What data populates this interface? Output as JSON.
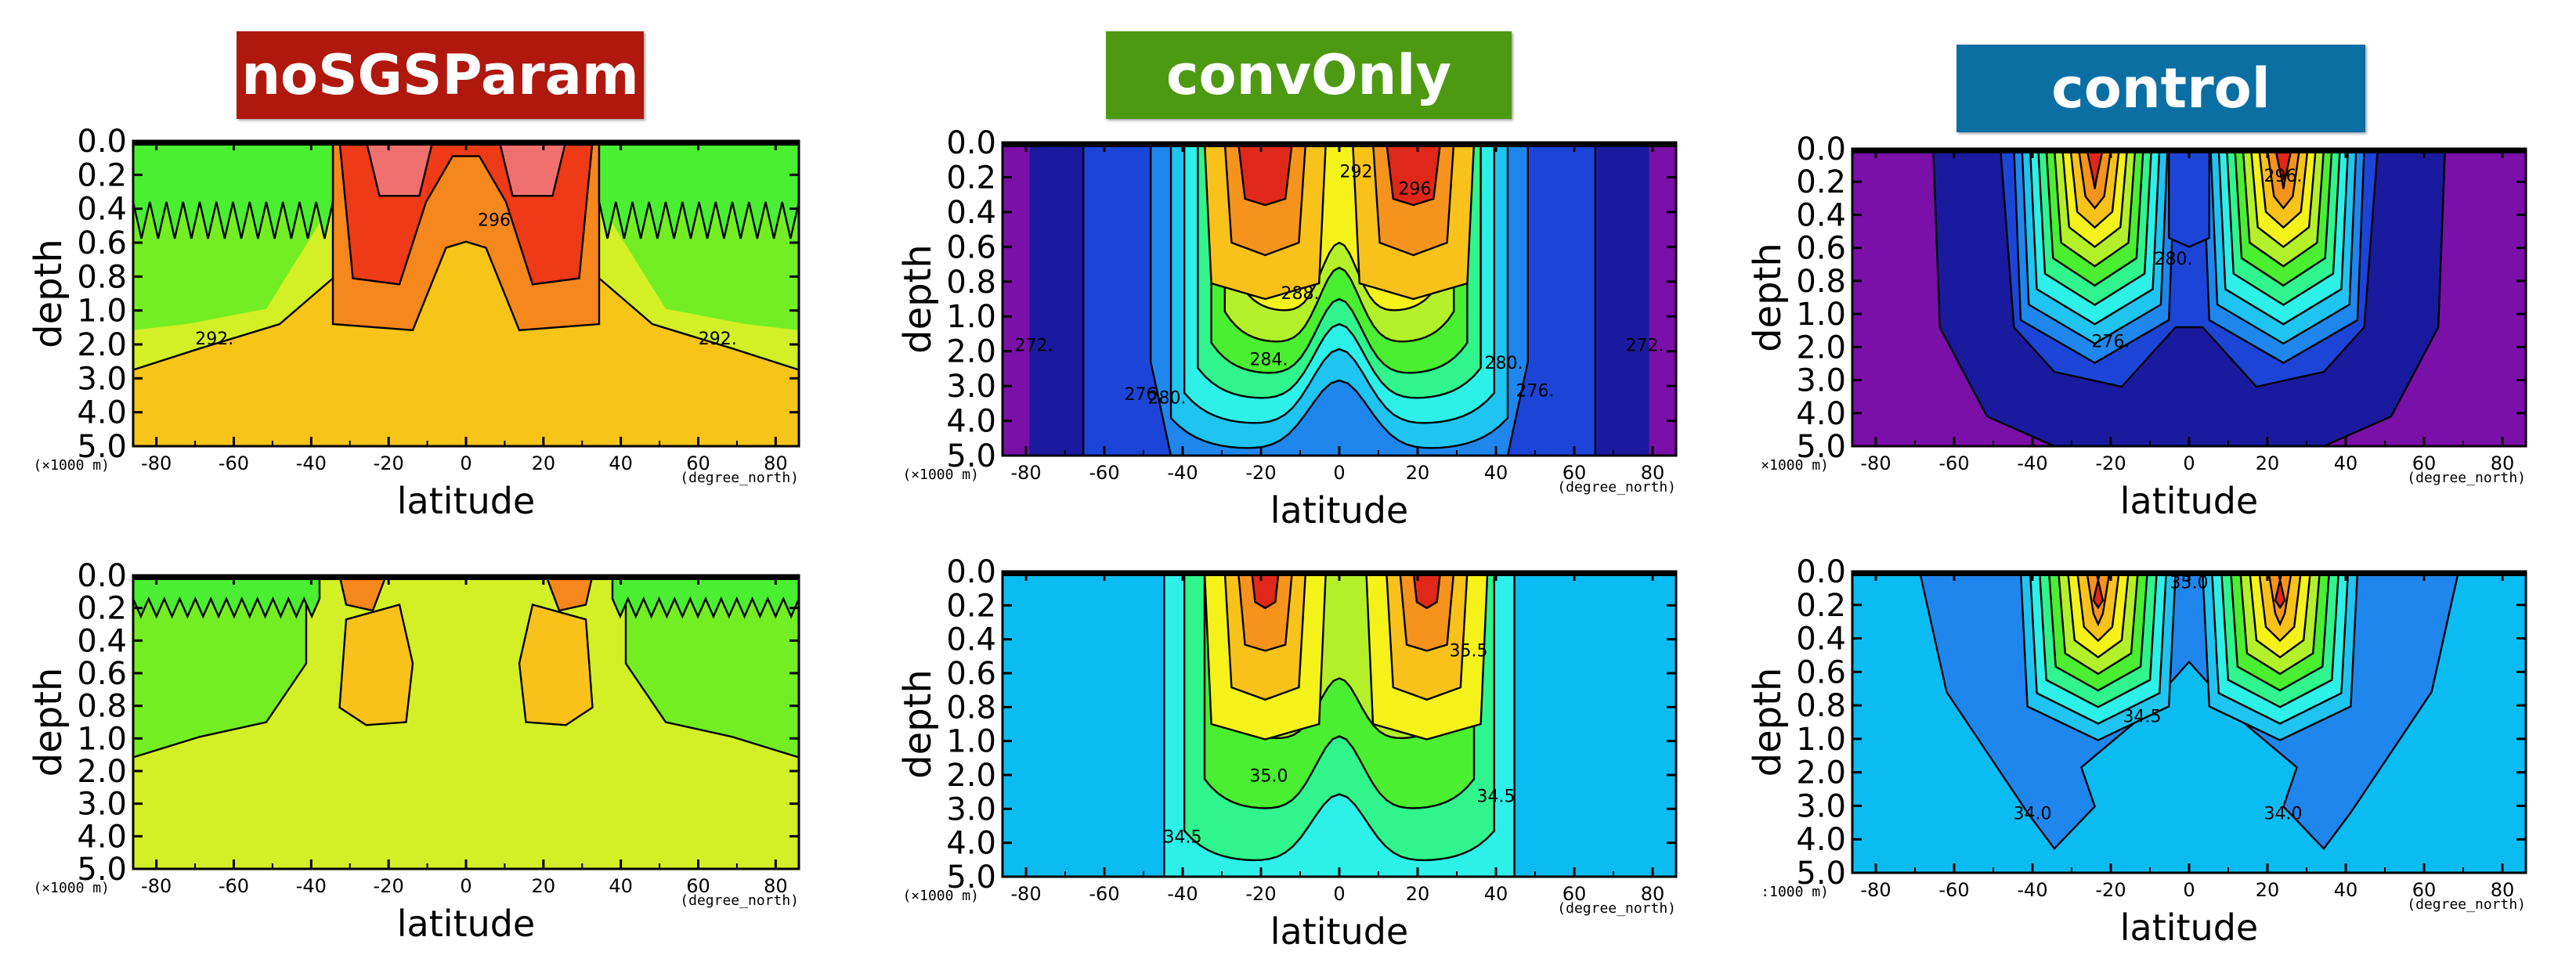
{
  "titles": [
    {
      "text": "noSGSParam",
      "color": "#b0180e"
    },
    {
      "text": "convOnly",
      "color": "#4d9a12"
    },
    {
      "text": "control",
      "color": "#0b6fa3"
    }
  ],
  "chart_data": [
    {
      "type": "heatmap",
      "experiment": "noSGSParam",
      "row": 0,
      "xlabel": "latitude",
      "ylabel": "depth",
      "x_unit": "(degree_north)",
      "y_unit": "(×1000 m)",
      "x_ticks": [
        -80,
        -60,
        -40,
        -20,
        0,
        20,
        40,
        60,
        80
      ],
      "y_ticks": [
        "0.0",
        "0.2",
        "0.4",
        "0.6",
        "0.8",
        "1.0",
        "2.0",
        "3.0",
        "4.0",
        "5.0"
      ],
      "xlim": [
        -86,
        86
      ],
      "ylim": [
        5.0,
        0.0
      ],
      "contour_labels": [
        {
          "text": "292.",
          "x": -65,
          "y": 2.0
        },
        {
          "text": "292.",
          "x": 65,
          "y": 2.0
        },
        {
          "text": "296.",
          "x": 8,
          "y": 0.5
        }
      ]
    },
    {
      "type": "heatmap",
      "experiment": "convOnly",
      "row": 0,
      "xlabel": "latitude",
      "ylabel": "depth",
      "x_unit": "(degree_north)",
      "y_unit": "(×1000 m)",
      "x_ticks": [
        -80,
        -60,
        -40,
        -20,
        0,
        20,
        40,
        60,
        80
      ],
      "y_ticks": [
        "0.0",
        "0.2",
        "0.4",
        "0.6",
        "0.8",
        "1.0",
        "2.0",
        "3.0",
        "4.0",
        "5.0"
      ],
      "xlim": [
        -86,
        86
      ],
      "ylim": [
        5.0,
        0.0
      ],
      "contour_labels": [
        {
          "text": "272.",
          "x": -78,
          "y": 2.0
        },
        {
          "text": "276.",
          "x": -50,
          "y": 3.4
        },
        {
          "text": "280.",
          "x": -44,
          "y": 3.5
        },
        {
          "text": "284.",
          "x": -18,
          "y": 2.4
        },
        {
          "text": "288.",
          "x": -10,
          "y": 0.9
        },
        {
          "text": "292.",
          "x": 5,
          "y": 0.2
        },
        {
          "text": "296.",
          "x": 20,
          "y": 0.3
        },
        {
          "text": "280.",
          "x": 42,
          "y": 2.5
        },
        {
          "text": "276.",
          "x": 50,
          "y": 3.3
        },
        {
          "text": "272.",
          "x": 78,
          "y": 2.0
        }
      ]
    },
    {
      "type": "heatmap",
      "experiment": "control",
      "row": 0,
      "xlabel": "latitude",
      "ylabel": "depth",
      "x_unit": "(degree_north)",
      "y_unit": "×1000 m)",
      "x_ticks": [
        -80,
        -60,
        -40,
        -20,
        0,
        20,
        40,
        60,
        80
      ],
      "y_ticks": [
        "0.0",
        "0.2",
        "0.4",
        "0.6",
        "0.8",
        "1.0",
        "2.0",
        "3.0",
        "4.0",
        "5.0"
      ],
      "xlim": [
        -86,
        86
      ],
      "ylim": [
        5.0,
        0.0
      ],
      "contour_labels": [
        {
          "text": "276.",
          "x": -20,
          "y": 2.0
        },
        {
          "text": "280.",
          "x": -4,
          "y": 0.7
        },
        {
          "text": "296.",
          "x": 24,
          "y": 0.2
        }
      ]
    },
    {
      "type": "heatmap",
      "experiment": "noSGSParam",
      "row": 1,
      "xlabel": "latitude",
      "ylabel": "depth",
      "x_unit": "(degree_north)",
      "y_unit": "(×1000 m)",
      "x_ticks": [
        -80,
        -60,
        -40,
        -20,
        0,
        20,
        40,
        60,
        80
      ],
      "y_ticks": [
        "0.0",
        "0.2",
        "0.4",
        "0.6",
        "0.8",
        "1.0",
        "2.0",
        "3.0",
        "4.0",
        "5.0"
      ],
      "xlim": [
        -86,
        86
      ],
      "ylim": [
        5.0,
        0.0
      ],
      "contour_labels": []
    },
    {
      "type": "heatmap",
      "experiment": "convOnly",
      "row": 1,
      "xlabel": "latitude",
      "ylabel": "depth",
      "x_unit": "(degree_north)",
      "y_unit": "(×1000 m)",
      "x_ticks": [
        -80,
        -60,
        -40,
        -20,
        0,
        20,
        40,
        60,
        80
      ],
      "y_ticks": [
        "0.0",
        "0.2",
        "0.4",
        "0.6",
        "0.8",
        "1.0",
        "2.0",
        "3.0",
        "4.0",
        "5.0"
      ],
      "xlim": [
        -86,
        86
      ],
      "ylim": [
        5.0,
        0.0
      ],
      "contour_labels": [
        {
          "text": "34.5",
          "x": -40,
          "y": 4.0
        },
        {
          "text": "35.0",
          "x": -18,
          "y": 2.2
        },
        {
          "text": "34.5",
          "x": 40,
          "y": 2.8
        },
        {
          "text": "35.5",
          "x": 33,
          "y": 0.5
        }
      ]
    },
    {
      "type": "heatmap",
      "experiment": "control",
      "row": 1,
      "xlabel": "latitude",
      "ylabel": "depth",
      "x_unit": "(degree_north)",
      "y_unit": ":1000 m)",
      "x_ticks": [
        -80,
        -60,
        -40,
        -20,
        0,
        20,
        40,
        60,
        80
      ],
      "y_ticks": [
        "0.0",
        "0.2",
        "0.4",
        "0.6",
        "0.8",
        "1.0",
        "2.0",
        "3.0",
        "4.0",
        "5.0"
      ],
      "xlim": [
        -86,
        86
      ],
      "ylim": [
        5.0,
        0.0
      ],
      "contour_labels": [
        {
          "text": "34.0",
          "x": -40,
          "y": 3.4
        },
        {
          "text": "34.5",
          "x": -12,
          "y": 0.9
        },
        {
          "text": "34.0",
          "x": 24,
          "y": 3.4
        },
        {
          "text": "35.0",
          "x": 0,
          "y": 0.1
        }
      ]
    }
  ]
}
